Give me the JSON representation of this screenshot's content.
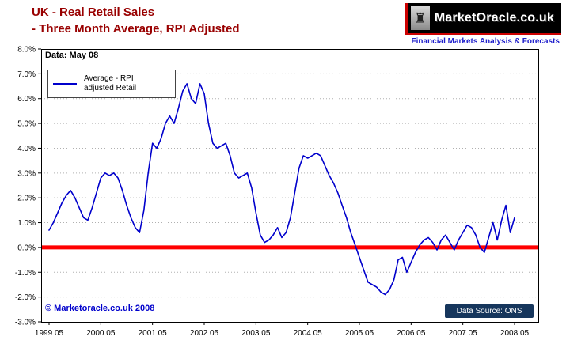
{
  "header": {
    "title_line1": "UK - Real Retail Sales",
    "title_line2": "- Three Month Average, RPI Adjusted",
    "logo_icon": "♜",
    "logo_text": "MarketOracle.co.uk",
    "logo_tagline": "Financial Markets Analysis & Forecasts"
  },
  "chart": {
    "data_label": "Data: May 08",
    "legend_line1": "Average - RPI",
    "legend_line2": "adjusted Retail",
    "copyright": "© Marketoracle.co.uk 2008",
    "source": "Data Source: ONS"
  },
  "colors": {
    "title": "#990000",
    "series_line": "#0000cc",
    "zero_line": "#ff0000",
    "badge_bg": "#16365c"
  },
  "chart_data": {
    "type": "line",
    "title": "UK - Real Retail Sales - Three Month Average, RPI Adjusted",
    "xlabel": "",
    "ylabel": "",
    "ylim": [
      -3.0,
      8.0
    ],
    "grid": "horizontal-dotted",
    "legend_position": "top-left-inside",
    "y_ticks": [
      "8.0%",
      "7.0%",
      "6.0%",
      "5.0%",
      "4.0%",
      "3.0%",
      "2.0%",
      "1.0%",
      "0.0%",
      "-1.0%",
      "-2.0%",
      "-3.0%"
    ],
    "x_tick_labels": [
      "1999 05",
      "2000 05",
      "2001 05",
      "2002 05",
      "2003 05",
      "2004 05",
      "2005 05",
      "2006 05",
      "2007 05",
      "2008 05"
    ],
    "x_start": "1999-05",
    "x_step": "monthly",
    "zero_line_color": "#ff0000",
    "series": [
      {
        "name": "Average - RPI adjusted Retail",
        "color": "#0000cc",
        "values": [
          0.7,
          1.0,
          1.4,
          1.8,
          2.1,
          2.3,
          2.0,
          1.6,
          1.2,
          1.1,
          1.6,
          2.2,
          2.8,
          3.0,
          2.9,
          3.0,
          2.8,
          2.3,
          1.7,
          1.2,
          0.8,
          0.6,
          1.5,
          3.0,
          4.2,
          4.0,
          4.4,
          5.0,
          5.3,
          5.0,
          5.6,
          6.3,
          6.6,
          6.0,
          5.8,
          6.6,
          6.2,
          5.0,
          4.2,
          4.0,
          4.1,
          4.2,
          3.7,
          3.0,
          2.8,
          2.9,
          3.0,
          2.4,
          1.4,
          0.5,
          0.2,
          0.3,
          0.5,
          0.8,
          0.4,
          0.6,
          1.2,
          2.2,
          3.2,
          3.7,
          3.6,
          3.7,
          3.8,
          3.7,
          3.3,
          2.9,
          2.6,
          2.2,
          1.7,
          1.2,
          0.6,
          0.1,
          -0.4,
          -0.9,
          -1.4,
          -1.5,
          -1.6,
          -1.8,
          -1.9,
          -1.7,
          -1.3,
          -0.5,
          -0.4,
          -1.0,
          -0.6,
          -0.2,
          0.1,
          0.3,
          0.4,
          0.2,
          -0.1,
          0.3,
          0.5,
          0.2,
          -0.1,
          0.3,
          0.6,
          0.9,
          0.8,
          0.5,
          0.0,
          -0.2,
          0.4,
          1.0,
          0.3,
          1.1,
          1.7,
          0.6,
          1.2
        ]
      }
    ]
  }
}
